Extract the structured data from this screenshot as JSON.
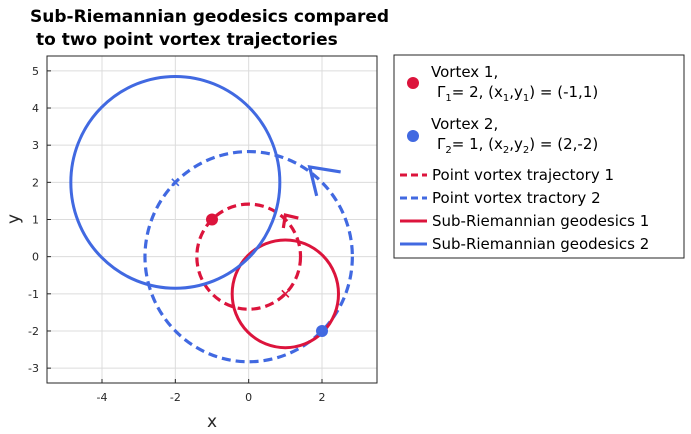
{
  "chart_data": {
    "type": "line",
    "title_lines": [
      "Sub-Riemannian geodesics compared",
      "to two point vortex trajectories"
    ],
    "xlabel": "x",
    "ylabel": "y",
    "xlim": [
      -5.5,
      3.5
    ],
    "ylim": [
      -3.4,
      5.4
    ],
    "x_ticks": [
      -4,
      -2,
      0,
      2
    ],
    "y_ticks": [
      -3,
      -2,
      -1,
      0,
      1,
      2,
      3,
      4,
      5
    ],
    "grid": true,
    "legend_position": "outside-right",
    "colors": {
      "vortex1": "#dc143c",
      "vortex2": "#4169e1"
    },
    "legend": {
      "vortex1_line1": "Vortex 1,",
      "vortex1_gamma": "Γ",
      "vortex1_gamma_sub": "1",
      "vortex1_mid": "= 2, (x",
      "vortex1_x_sub": "1",
      "vortex1_comma": ",y",
      "vortex1_y_sub": "1",
      "vortex1_end": ") = (-1,1)",
      "vortex2_line1": "Vortex 2,",
      "vortex2_gamma": "Γ",
      "vortex2_gamma_sub": "2",
      "vortex2_mid": "= 1, (x",
      "vortex2_x_sub": "2",
      "vortex2_comma": ",y",
      "vortex2_y_sub": "2",
      "vortex2_end": ") = (2,-2)",
      "traj1": "Point vortex trajectory 1",
      "traj2": "Point vortex tractory 2",
      "geo1": "Sub-Riemannian geodesics 1",
      "geo2": "Sub-Riemannian geodesics 2"
    },
    "vortices": [
      {
        "x": -1,
        "y": 1,
        "color": "#dc143c"
      },
      {
        "x": 2,
        "y": -2,
        "color": "#4169e1"
      }
    ],
    "trajectories": [
      {
        "cx": 0,
        "cy": 0,
        "r": 1.414,
        "color": "#dc143c",
        "style": "dashed"
      },
      {
        "cx": 0,
        "cy": 0,
        "r": 2.828,
        "color": "#4169e1",
        "style": "dashed"
      }
    ],
    "geodesics": [
      {
        "cx": 1,
        "cy": -1,
        "r": 1.45,
        "color": "#dc143c",
        "style": "solid"
      },
      {
        "cx": -2,
        "cy": 2,
        "r": 2.85,
        "color": "#4169e1",
        "style": "solid"
      }
    ],
    "center_markers": [
      {
        "x": 1,
        "y": -1,
        "color": "#dc143c"
      },
      {
        "x": -2,
        "y": 2,
        "color": "#4169e1"
      }
    ],
    "arrows": [
      {
        "x": 1.0,
        "y": 1.12,
        "dir": "down-right",
        "color": "#dc143c"
      },
      {
        "x": 1.8,
        "y": 2.2,
        "dir": "up-left",
        "color": "#4169e1"
      }
    ]
  }
}
